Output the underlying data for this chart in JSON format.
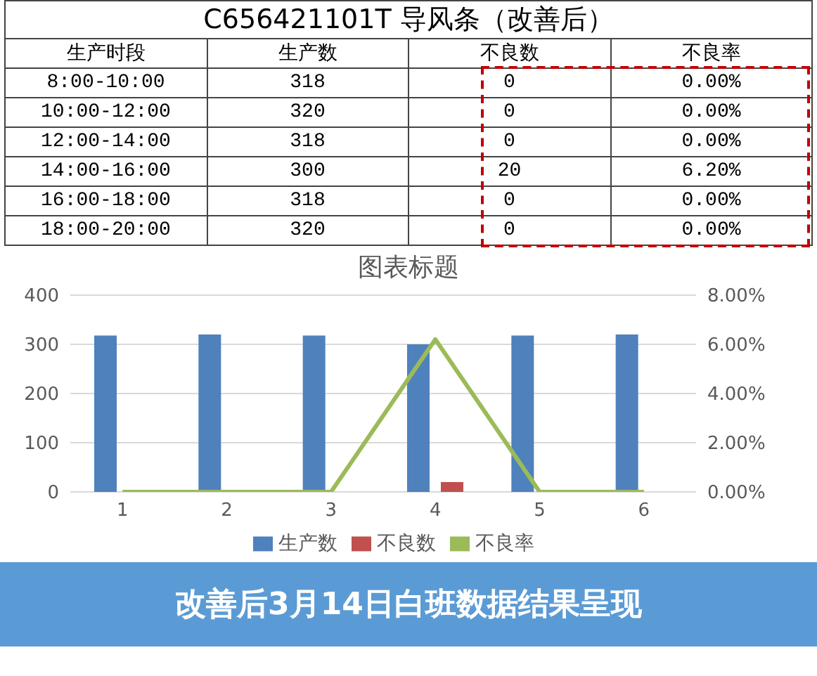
{
  "chart_data": [
    {
      "type": "other",
      "title": "C656421101T 导风条（改善后）",
      "annotations": [
        "生产时段"
      ],
      "data_labels": true,
      "categories": [
        "8:00-10:00",
        "10:00-12:00",
        "12:00-14:00",
        "14:00-16:00",
        "16:00-18:00",
        "18:00-20:00"
      ],
      "series": [
        {
          "name": "生产数",
          "values": [
            318,
            320,
            318,
            300,
            318,
            320
          ]
        },
        {
          "name": "不良数",
          "values": [
            0,
            0,
            0,
            20,
            0,
            0
          ]
        },
        {
          "name": "不良率",
          "values": [
            0,
            0,
            0,
            6.2,
            0,
            0
          ],
          "value_labels": [
            "0.00%",
            "0.00%",
            "0.00%",
            "6.20%",
            "0.00%",
            "0.00%"
          ]
        }
      ]
    },
    {
      "type": "bar",
      "title": "图表标题",
      "categories": [
        "1",
        "2",
        "3",
        "4",
        "5",
        "6"
      ],
      "series": [
        {
          "name": "生产数",
          "type": "bar",
          "color": "#4f81bd",
          "values": [
            318,
            320,
            318,
            300,
            318,
            320
          ]
        },
        {
          "name": "不良数",
          "type": "bar",
          "color": "#c0504d",
          "values": [
            0,
            0,
            0,
            20,
            0,
            0
          ]
        },
        {
          "name": "不良率",
          "type": "line",
          "axis": "y2",
          "color": "#9bbb59",
          "values": [
            0,
            0,
            0,
            6.2,
            0,
            0
          ]
        }
      ],
      "ylim": [
        0,
        400
      ],
      "yticks": [
        0,
        100,
        200,
        300,
        400
      ],
      "y2lim": [
        0,
        8
      ],
      "y2ticks": [
        {
          "value": 0,
          "label": "0.00%"
        },
        {
          "value": 2,
          "label": "2.00%"
        },
        {
          "value": 4,
          "label": "4.00%"
        },
        {
          "value": 6,
          "label": "6.00%"
        },
        {
          "value": 8,
          "label": "8.00%"
        }
      ],
      "grid": "y",
      "legend": "bottom",
      "marker": "none",
      "line_style": "solid",
      "annotations": [
        "改善后3月14日白班数据结果呈现"
      ]
    }
  ]
}
